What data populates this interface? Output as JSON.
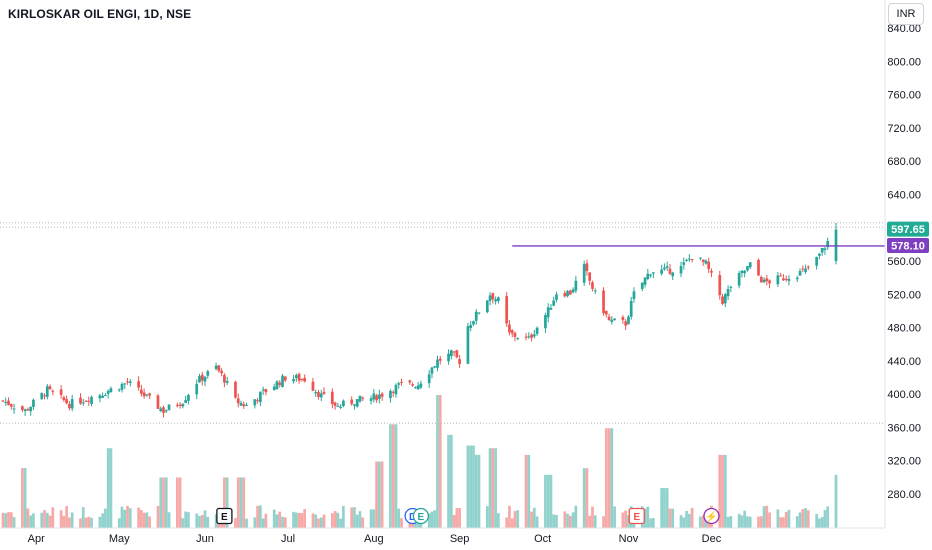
{
  "header": {
    "title": "KIRLOSKAR OIL ENGI, 1D, NSE",
    "currency": "INR"
  },
  "chart_data": {
    "type": "candlestick",
    "ylim": [
      240,
      850
    ],
    "y_ticks": [
      840,
      800,
      760,
      720,
      680,
      640,
      600,
      560,
      520,
      480,
      440,
      400,
      360,
      320,
      280
    ],
    "y_tick_labels": [
      "840.00",
      "800.00",
      "760.00",
      "720.00",
      "680.00",
      "640.00",
      "600.00",
      "560.00",
      "520.00",
      "480.00",
      "440.00",
      "400.00",
      "360.00",
      "320.00",
      "280.00"
    ],
    "x_labels": [
      {
        "label": "Apr",
        "date": "2023-04-01"
      },
      {
        "label": "May",
        "date": "2023-05-01"
      },
      {
        "label": "Jun",
        "date": "2023-06-01"
      },
      {
        "label": "Jul",
        "date": "2023-07-01"
      },
      {
        "label": "Aug",
        "date": "2023-08-01"
      },
      {
        "label": "Sep",
        "date": "2023-09-01"
      },
      {
        "label": "Oct",
        "date": "2023-10-01"
      },
      {
        "label": "Nov",
        "date": "2023-11-01"
      },
      {
        "label": "Dec",
        "date": "2023-12-01"
      }
    ],
    "price_labels": [
      {
        "value": 597.65,
        "text": "597.65",
        "color": "#22ab94"
      },
      {
        "value": 578.1,
        "text": "578.10",
        "color": "#7e3fc1"
      }
    ],
    "dotted_lines": [
      600.5,
      365,
      606
    ],
    "horizontal_line": {
      "value": 578.1,
      "from_date": "2023-09-20",
      "color": "#7e3fc1"
    },
    "events": [
      {
        "label": "E",
        "date": "2023-06-08",
        "style": "box"
      },
      {
        "label": "D",
        "date": "2023-08-15",
        "style": "circle-blue"
      },
      {
        "label": "E",
        "date": "2023-08-18",
        "style": "circle-green"
      },
      {
        "label": "E",
        "date": "2023-11-04",
        "style": "box-red"
      },
      {
        "label": "⚡",
        "date": "2023-12-01",
        "style": "circle-purple"
      }
    ],
    "colors": {
      "up": "#26a69a",
      "down": "#ef5350",
      "vol_up": "#92d2cc",
      "vol_down": "#f7a9a7",
      "axis_text": "#131722"
    },
    "anchors": [
      {
        "d": "2023-03-20",
        "c": 392
      },
      {
        "d": "2023-03-28",
        "c": 380
      },
      {
        "d": "2023-04-05",
        "c": 405
      },
      {
        "d": "2023-04-13",
        "c": 388
      },
      {
        "d": "2023-04-24",
        "c": 400
      },
      {
        "d": "2023-05-04",
        "c": 414
      },
      {
        "d": "2023-05-11",
        "c": 396
      },
      {
        "d": "2023-05-17",
        "c": 380
      },
      {
        "d": "2023-05-24",
        "c": 392
      },
      {
        "d": "2023-05-29",
        "c": 415
      },
      {
        "d": "2023-06-05",
        "c": 432
      },
      {
        "d": "2023-06-08",
        "c": 418
      },
      {
        "d": "2023-06-12",
        "c": 392
      },
      {
        "d": "2023-06-16",
        "c": 386
      },
      {
        "d": "2023-06-22",
        "c": 402
      },
      {
        "d": "2023-06-30",
        "c": 420
      },
      {
        "d": "2023-07-07",
        "c": 418
      },
      {
        "d": "2023-07-13",
        "c": 398
      },
      {
        "d": "2023-07-19",
        "c": 385
      },
      {
        "d": "2023-07-25",
        "c": 392
      },
      {
        "d": "2023-07-31",
        "c": 395
      },
      {
        "d": "2023-08-04",
        "c": 400
      },
      {
        "d": "2023-08-10",
        "c": 410
      },
      {
        "d": "2023-08-17",
        "c": 412
      },
      {
        "d": "2023-08-24",
        "c": 440
      },
      {
        "d": "2023-08-29",
        "c": 448
      },
      {
        "d": "2023-09-01",
        "c": 440
      },
      {
        "d": "2023-09-04",
        "c": 482
      },
      {
        "d": "2023-09-07",
        "c": 495
      },
      {
        "d": "2023-09-12",
        "c": 520
      },
      {
        "d": "2023-09-15",
        "c": 512
      },
      {
        "d": "2023-09-19",
        "c": 472
      },
      {
        "d": "2023-09-26",
        "c": 466
      },
      {
        "d": "2023-10-03",
        "c": 500
      },
      {
        "d": "2023-10-06",
        "c": 522
      },
      {
        "d": "2023-10-11",
        "c": 522
      },
      {
        "d": "2023-10-16",
        "c": 552
      },
      {
        "d": "2023-10-20",
        "c": 520
      },
      {
        "d": "2023-10-25",
        "c": 488
      },
      {
        "d": "2023-10-31",
        "c": 485
      },
      {
        "d": "2023-11-03",
        "c": 520
      },
      {
        "d": "2023-11-09",
        "c": 548
      },
      {
        "d": "2023-11-14",
        "c": 548
      },
      {
        "d": "2023-11-20",
        "c": 552
      },
      {
        "d": "2023-11-24",
        "c": 566
      },
      {
        "d": "2023-11-29",
        "c": 556
      },
      {
        "d": "2023-12-05",
        "c": 512
      },
      {
        "d": "2023-12-08",
        "c": 530
      },
      {
        "d": "2023-12-12",
        "c": 545
      },
      {
        "d": "2023-12-15",
        "c": 555
      },
      {
        "d": "2023-12-20",
        "c": 534
      },
      {
        "d": "2023-12-27",
        "c": 540
      },
      {
        "d": "2024-01-04",
        "c": 548
      },
      {
        "d": "2024-01-08",
        "c": 562
      },
      {
        "d": "2024-01-11",
        "c": 578
      },
      {
        "d": "2024-01-15",
        "c": 597.65
      }
    ],
    "volume_spikes": [
      {
        "d": "2023-03-27",
        "v": 0.45
      },
      {
        "d": "2023-04-28",
        "v": 0.6
      },
      {
        "d": "2023-05-17",
        "v": 0.38
      },
      {
        "d": "2023-05-22",
        "v": 0.38
      },
      {
        "d": "2023-06-09",
        "v": 0.38
      },
      {
        "d": "2023-06-14",
        "v": 0.38
      },
      {
        "d": "2023-08-03",
        "v": 0.5
      },
      {
        "d": "2023-08-08",
        "v": 0.78
      },
      {
        "d": "2023-08-25",
        "v": 1.0
      },
      {
        "d": "2023-08-28",
        "v": 0.7
      },
      {
        "d": "2023-09-05",
        "v": 0.62
      },
      {
        "d": "2023-09-08",
        "v": 0.55
      },
      {
        "d": "2023-09-13",
        "v": 0.6
      },
      {
        "d": "2023-09-25",
        "v": 0.55
      },
      {
        "d": "2023-10-03",
        "v": 0.4
      },
      {
        "d": "2023-10-16",
        "v": 0.45
      },
      {
        "d": "2023-10-25",
        "v": 0.75
      },
      {
        "d": "2023-11-14",
        "v": 0.3
      },
      {
        "d": "2023-12-05",
        "v": 0.55
      },
      {
        "d": "2024-01-15",
        "v": 0.4
      }
    ]
  }
}
